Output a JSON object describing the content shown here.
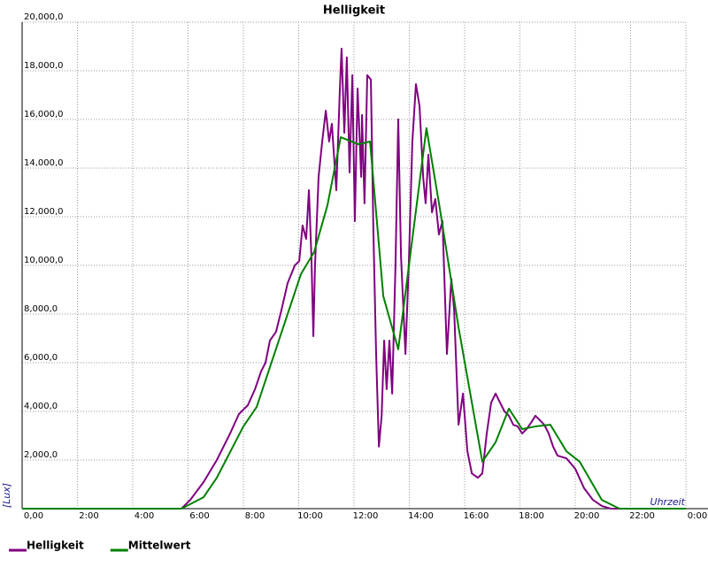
{
  "chart_data": {
    "type": "line",
    "title": "Helligkeit",
    "x_label": "Uhrzeit",
    "y_label": "[Lux]",
    "grid": true,
    "legend": "bottom",
    "xlim": [
      0,
      24
    ],
    "ylim": [
      0,
      20000
    ],
    "xticks": [
      {
        "value": 0,
        "label": "0,00"
      },
      {
        "value": 2,
        "label": "2:00"
      },
      {
        "value": 4,
        "label": "4:00"
      },
      {
        "value": 6,
        "label": "6:00"
      },
      {
        "value": 8,
        "label": "8:00"
      },
      {
        "value": 10,
        "label": "10:00"
      },
      {
        "value": 12,
        "label": "12:00"
      },
      {
        "value": 14,
        "label": "14:00"
      },
      {
        "value": 16,
        "label": "16:00"
      },
      {
        "value": 18,
        "label": "18:00"
      },
      {
        "value": 20,
        "label": "20:00"
      },
      {
        "value": 22,
        "label": "22:00"
      },
      {
        "value": 24,
        "label": "0:00"
      }
    ],
    "yticks": [
      {
        "value": 2000,
        "label": "2,000,0"
      },
      {
        "value": 4000,
        "label": "4,000,0"
      },
      {
        "value": 6000,
        "label": "6,000,0"
      },
      {
        "value": 8000,
        "label": "8,000,0"
      },
      {
        "value": 10000,
        "label": "10,000,0"
      },
      {
        "value": 12000,
        "label": "12,000,0"
      },
      {
        "value": 14000,
        "label": "14,000,0"
      },
      {
        "value": 16000,
        "label": "16,000,0"
      },
      {
        "value": 18000,
        "label": "18,000,0"
      },
      {
        "value": 20000,
        "label": "20,000,0"
      }
    ],
    "series": [
      {
        "name": "Helligkeit",
        "color": "#800080",
        "x": [
          0,
          5.76,
          6.08,
          6.56,
          7.04,
          7.52,
          7.84,
          8.16,
          8.42,
          8.64,
          8.8,
          8.96,
          9.18,
          9.38,
          9.6,
          9.86,
          10.02,
          10.14,
          10.27,
          10.37,
          10.46,
          10.53,
          10.59,
          10.72,
          10.85,
          10.98,
          11.1,
          11.2,
          11.36,
          11.49,
          11.55,
          11.65,
          11.74,
          11.84,
          11.94,
          12.03,
          12.13,
          12.26,
          12.29,
          12.38,
          12.48,
          12.61,
          12.7,
          12.8,
          12.9,
          13.0,
          13.09,
          13.18,
          13.28,
          13.38,
          13.5,
          13.6,
          13.7,
          13.86,
          13.98,
          14.11,
          14.24,
          14.37,
          14.5,
          14.59,
          14.69,
          14.82,
          14.94,
          15.07,
          15.2,
          15.36,
          15.52,
          15.62,
          15.78,
          15.94,
          16.1,
          16.26,
          16.48,
          16.64,
          16.8,
          16.96,
          17.12,
          17.28,
          17.44,
          17.6,
          17.76,
          17.92,
          18.08,
          18.24,
          18.4,
          18.56,
          18.72,
          18.88,
          19.04,
          19.2,
          19.36,
          19.68,
          20.0,
          20.32,
          20.64,
          20.96,
          21.28,
          24
        ],
        "values": [
          0,
          0,
          360,
          1090,
          2000,
          3090,
          3890,
          4250,
          4910,
          5640,
          6000,
          6910,
          7270,
          8180,
          9270,
          10000,
          10180,
          11640,
          11090,
          13090,
          10360,
          7090,
          10000,
          13640,
          15090,
          16360,
          15090,
          15820,
          13090,
          17270,
          18910,
          15450,
          18550,
          13820,
          17820,
          11820,
          17270,
          13640,
          16180,
          12550,
          17820,
          17640,
          11450,
          6360,
          2550,
          3820,
          6910,
          4910,
          6910,
          4730,
          10000,
          16000,
          10360,
          6360,
          10000,
          15090,
          17450,
          16550,
          13640,
          12550,
          14550,
          12180,
          12730,
          11270,
          11820,
          6360,
          9450,
          8180,
          3450,
          4730,
          2360,
          1450,
          1270,
          1450,
          3090,
          4360,
          4730,
          4360,
          4000,
          3820,
          3450,
          3380,
          3090,
          3270,
          3530,
          3820,
          3640,
          3450,
          3090,
          2550,
          2180,
          2070,
          1640,
          840,
          360,
          110,
          0,
          0
        ]
      },
      {
        "name": "Mittelwert",
        "color": "#008000",
        "x": [
          0,
          5.76,
          6.56,
          7.04,
          8,
          8.48,
          9.12,
          10.08,
          10.56,
          11.04,
          11.52,
          12.16,
          12.58,
          13.06,
          13.6,
          14.62,
          15.1,
          15.78,
          16.64,
          17.12,
          17.6,
          18.08,
          18.56,
          19.1,
          19.68,
          20.16,
          20.96,
          21.6,
          24
        ],
        "values": [
          0,
          0,
          470,
          1270,
          3380,
          4180,
          6360,
          9640,
          10550,
          12470,
          15270,
          14980,
          15090,
          8730,
          6550,
          15640,
          12360,
          7450,
          1930,
          2730,
          4110,
          3270,
          3380,
          3450,
          2360,
          1930,
          360,
          0,
          0
        ]
      }
    ]
  }
}
